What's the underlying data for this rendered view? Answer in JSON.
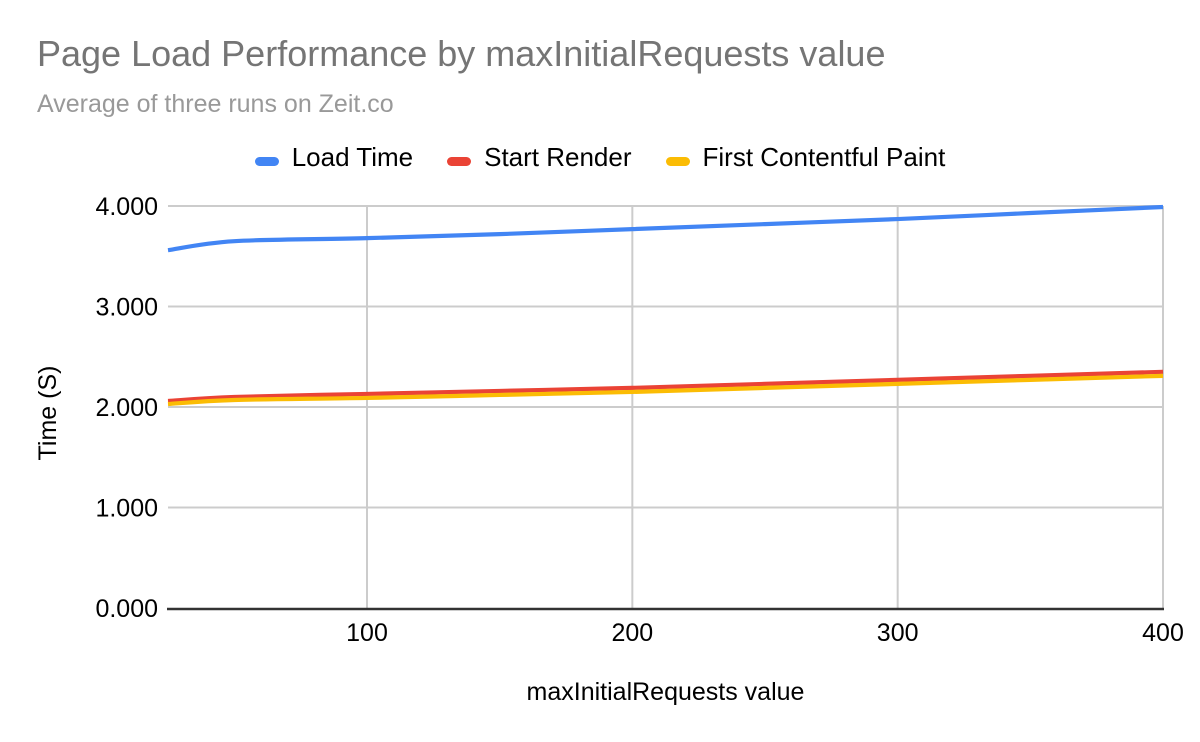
{
  "chart_data": {
    "type": "line",
    "title": "Page Load Performance by maxInitialRequests value",
    "subtitle": "Average of three runs on Zeit.co",
    "xlabel": "maxInitialRequests value",
    "ylabel": "Time (S)",
    "x": [
      25,
      50,
      100,
      150,
      200,
      250,
      300,
      350,
      400
    ],
    "series": [
      {
        "name": "Load Time",
        "color": "#4285f4",
        "values": [
          3.56,
          3.65,
          3.68,
          3.72,
          3.77,
          3.82,
          3.87,
          3.93,
          3.99
        ]
      },
      {
        "name": "Start Render",
        "color": "#ea4335",
        "values": [
          2.06,
          2.1,
          2.13,
          2.16,
          2.19,
          2.23,
          2.27,
          2.31,
          2.35
        ]
      },
      {
        "name": "First Contentful Paint",
        "color": "#fbbc04",
        "values": [
          2.03,
          2.07,
          2.09,
          2.12,
          2.15,
          2.19,
          2.23,
          2.27,
          2.31
        ]
      }
    ],
    "xticks": [
      100,
      200,
      300,
      400
    ],
    "xtick_labels": [
      "100",
      "200",
      "300",
      "400"
    ],
    "yticks": [
      0,
      1,
      2,
      3,
      4
    ],
    "ytick_labels": [
      "0.000",
      "1.000",
      "2.000",
      "3.000",
      "4.000"
    ],
    "xlim": [
      25,
      400
    ],
    "ylim": [
      0,
      4
    ],
    "grid": true,
    "legend_position": "top"
  },
  "style": {
    "background": "#ffffff",
    "title_color": "#757575",
    "subtitle_color": "#999999",
    "text_color": "#000000",
    "gridline_color": "#cccccc",
    "axis_line_color": "#333333"
  }
}
